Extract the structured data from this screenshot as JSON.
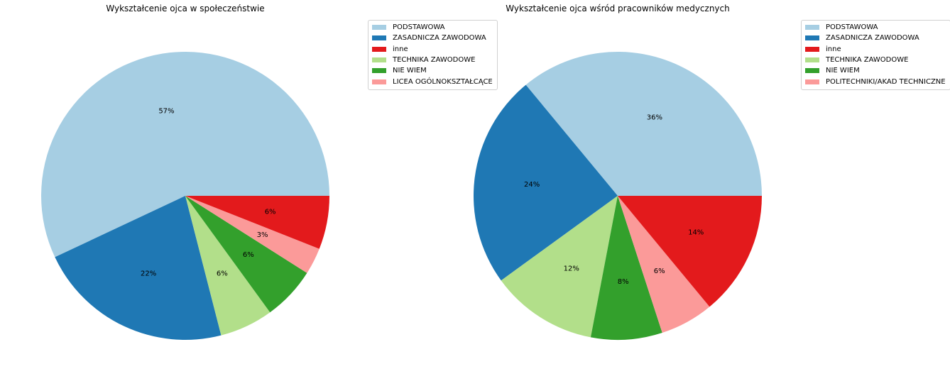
{
  "chart_data": [
    {
      "type": "pie",
      "title": "Wykształcenie ojca w społeczeństwie",
      "labels": [
        "PODSTAWOWA",
        "ZASADNICZA ZAWODOWA",
        "TECHNIKA ZAWODOWE",
        "NIE WIEM",
        "LICEA OGÓLNOKSZTAŁCĄCE",
        "inne"
      ],
      "values": [
        57,
        22,
        6,
        6,
        3,
        6
      ],
      "value_labels": [
        "57%",
        "22%",
        "6%",
        "6%",
        "3%",
        "6%"
      ],
      "colors": [
        "#a6cee3",
        "#1f78b4",
        "#b2df8a",
        "#33a02c",
        "#fb9a99",
        "#e31a1c"
      ],
      "start_angle_deg": 0,
      "direction": "counterclockwise",
      "legend": {
        "position": "upper-right, outside",
        "entries": [
          {
            "label": "PODSTAWOWA",
            "color": "#a6cee3"
          },
          {
            "label": "ZASADNICZA ZAWODOWA",
            "color": "#1f78b4"
          },
          {
            "label": "inne",
            "color": "#e31a1c"
          },
          {
            "label": "TECHNIKA ZAWODOWE",
            "color": "#b2df8a"
          },
          {
            "label": "NIE WIEM",
            "color": "#33a02c"
          },
          {
            "label": "LICEA OGÓLNOKSZTAŁCĄCE",
            "color": "#fb9a99"
          }
        ]
      }
    },
    {
      "type": "pie",
      "title": "Wykształcenie ojca wśród pracowników medycznych",
      "labels": [
        "PODSTAWOWA",
        "ZASADNICZA ZAWODOWA",
        "TECHNIKA ZAWODOWE",
        "NIE WIEM",
        "POLITECHNIKI/AKAD TECHNICZNE",
        "inne"
      ],
      "values": [
        36,
        24,
        12,
        8,
        6,
        14
      ],
      "value_labels": [
        "36%",
        "24%",
        "12%",
        "8%",
        "6%",
        "14%"
      ],
      "colors": [
        "#a6cee3",
        "#1f78b4",
        "#b2df8a",
        "#33a02c",
        "#fb9a99",
        "#e31a1c"
      ],
      "start_angle_deg": 0,
      "direction": "counterclockwise",
      "legend": {
        "position": "upper-right, outside",
        "entries": [
          {
            "label": "PODSTAWOWA",
            "color": "#a6cee3"
          },
          {
            "label": "ZASADNICZA ZAWODOWA",
            "color": "#1f78b4"
          },
          {
            "label": "inne",
            "color": "#e31a1c"
          },
          {
            "label": "TECHNIKA ZAWODOWE",
            "color": "#b2df8a"
          },
          {
            "label": "NIE WIEM",
            "color": "#33a02c"
          },
          {
            "label": "POLITECHNIKI/AKAD TECHNICZNE",
            "color": "#fb9a99"
          }
        ]
      }
    }
  ]
}
